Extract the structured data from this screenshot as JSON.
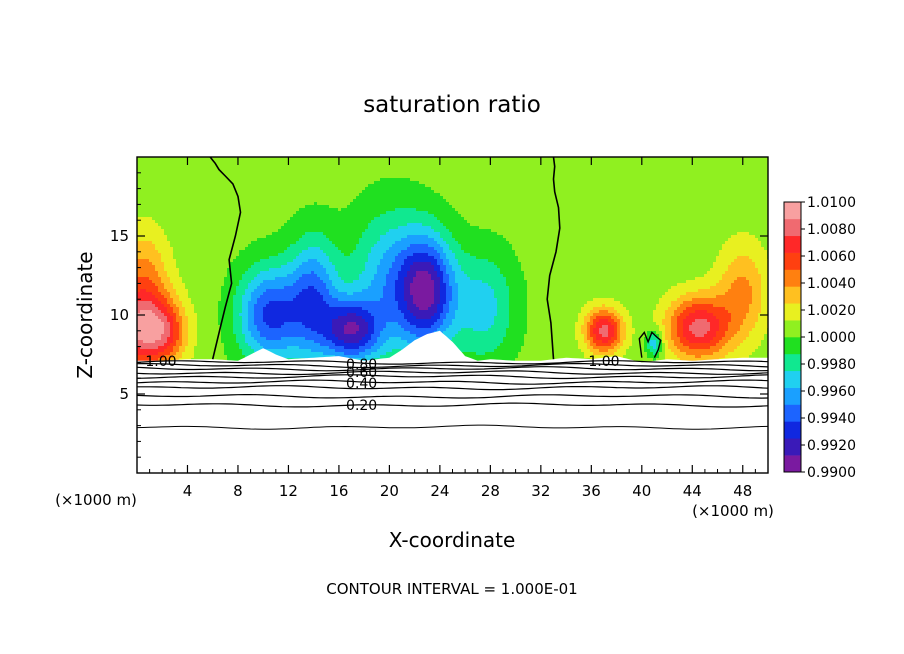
{
  "chart_data": {
    "type": "heatmap",
    "title": "saturation ratio",
    "xlabel": "X-coordinate",
    "ylabel": "Z-coordinate",
    "x_unit_label": "(×1000 m)",
    "x_unit_label_right": "(×1000 m)",
    "xlim": [
      0,
      50
    ],
    "ylim": [
      0,
      20
    ],
    "x_ticks": [
      4,
      8,
      12,
      16,
      20,
      24,
      28,
      32,
      36,
      40,
      44,
      48
    ],
    "x_tick_labels": [
      "4",
      "8",
      "12",
      "16",
      "20",
      "24",
      "28",
      "32",
      "36",
      "40",
      "44",
      "48"
    ],
    "y_ticks": [
      5,
      10,
      15
    ],
    "y_tick_labels": [
      "5",
      "10",
      "15"
    ],
    "footer": "CONTOUR INTERVAL = 1.000E-01",
    "colorbar": {
      "min": 0.99,
      "max": 1.01,
      "levels": [
        "1.0100",
        "1.0080",
        "1.0060",
        "1.0040",
        "1.0020",
        "1.0000",
        "0.9980",
        "0.9960",
        "0.9940",
        "0.9920",
        "0.9900"
      ]
    },
    "contour_labels": [
      {
        "text": "1.00",
        "x": 1.9,
        "z": 7.1
      },
      {
        "text": "0.80",
        "x": 17.8,
        "z": 6.9
      },
      {
        "text": "0.60",
        "x": 17.8,
        "z": 6.4
      },
      {
        "text": "0.40",
        "x": 17.8,
        "z": 5.7
      },
      {
        "text": "0.20",
        "x": 17.8,
        "z": 4.3
      },
      {
        "text": "1.00",
        "x": 37.0,
        "z": 7.1
      }
    ],
    "terrain_profile": {
      "x": [
        0,
        2,
        4,
        6,
        8,
        9,
        10,
        11,
        12,
        14,
        16,
        18,
        20,
        21,
        22,
        23,
        24,
        25,
        26,
        27,
        28,
        30,
        32,
        34,
        36,
        38,
        40,
        42,
        44,
        46,
        48,
        50
      ],
      "z": [
        7.1,
        7.1,
        7.2,
        7.2,
        7.1,
        7.5,
        7.9,
        7.5,
        7.2,
        7.3,
        7.4,
        7.1,
        7.3,
        7.8,
        8.4,
        8.8,
        9.0,
        8.3,
        7.4,
        7.1,
        7.2,
        7.1,
        7.1,
        7.3,
        7.2,
        7.4,
        7.0,
        7.2,
        7.1,
        7.2,
        7.3,
        7.3
      ]
    },
    "field_hotspots": [
      {
        "x": 0.5,
        "z": 9.0,
        "value": 1.0085,
        "sx": 2.6,
        "sz": 2.4
      },
      {
        "x": 0.5,
        "z": 12.5,
        "value": 1.004,
        "sx": 2.0,
        "sz": 3.0
      },
      {
        "x": 2.5,
        "z": 9.0,
        "value": 1.003,
        "sx": 1.5,
        "sz": 1.8
      },
      {
        "x": 10.5,
        "z": 10.0,
        "value": 0.9935,
        "sx": 2.5,
        "sz": 3.0
      },
      {
        "x": 14.0,
        "z": 11.0,
        "value": 0.9945,
        "sx": 2.0,
        "sz": 3.8
      },
      {
        "x": 17.0,
        "z": 9.0,
        "value": 0.9925,
        "sx": 2.2,
        "sz": 2.0
      },
      {
        "x": 23.0,
        "z": 11.5,
        "value": 0.992,
        "sx": 2.2,
        "sz": 3.5
      },
      {
        "x": 20.0,
        "z": 12.0,
        "value": 0.996,
        "sx": 3.0,
        "sz": 4.5
      },
      {
        "x": 27.5,
        "z": 10.5,
        "value": 0.997,
        "sx": 2.5,
        "sz": 3.5
      },
      {
        "x": 37.0,
        "z": 9.0,
        "value": 1.008,
        "sx": 1.5,
        "sz": 1.4
      },
      {
        "x": 44.5,
        "z": 9.2,
        "value": 1.008,
        "sx": 2.5,
        "sz": 2.0
      },
      {
        "x": 48.0,
        "z": 11.5,
        "value": 1.004,
        "sx": 2.0,
        "sz": 3.0
      },
      {
        "x": 41.0,
        "z": 8.2,
        "value": 0.996,
        "sx": 0.6,
        "sz": 0.8
      }
    ],
    "contour_1_00_left": {
      "x": [
        6.0,
        6.6,
        7.0,
        7.5,
        7.3,
        7.8,
        8.2,
        8.0,
        7.6,
        7.0,
        6.5,
        6.2,
        6.0,
        5.8
      ],
      "z": [
        7.2,
        9.2,
        10.5,
        12.0,
        13.5,
        15.0,
        16.5,
        17.5,
        18.3,
        18.8,
        19.2,
        19.6,
        19.8,
        20.0
      ]
    },
    "contour_1_00_right": {
      "x": [
        33.0,
        32.8,
        32.5,
        32.7,
        33.2,
        33.5,
        33.4,
        33.1,
        33.0,
        33.1,
        33.0
      ],
      "z": [
        7.2,
        9.5,
        11.0,
        12.5,
        14.0,
        15.5,
        16.8,
        17.8,
        18.6,
        19.4,
        20.0
      ]
    },
    "contour_1_00_small": {
      "x": [
        40.0,
        39.8,
        40.2,
        40.5,
        40.8,
        41.2,
        41.5,
        41.3,
        41.0
      ],
      "z": [
        7.3,
        8.5,
        8.9,
        8.3,
        8.9,
        8.6,
        8.4,
        7.8,
        7.3
      ]
    },
    "stable_layer_contours": [
      {
        "level": 0.95,
        "z": 7.0
      },
      {
        "level": 0.9,
        "z": 6.8
      },
      {
        "level": 0.8,
        "z": 6.6
      },
      {
        "level": 0.7,
        "z": 6.35
      },
      {
        "level": 0.6,
        "z": 6.1
      },
      {
        "level": 0.5,
        "z": 5.75
      },
      {
        "level": 0.4,
        "z": 5.4
      },
      {
        "level": 0.3,
        "z": 4.85
      },
      {
        "level": 0.2,
        "z": 4.3
      },
      {
        "level": 0.1,
        "z": 2.9
      }
    ]
  }
}
